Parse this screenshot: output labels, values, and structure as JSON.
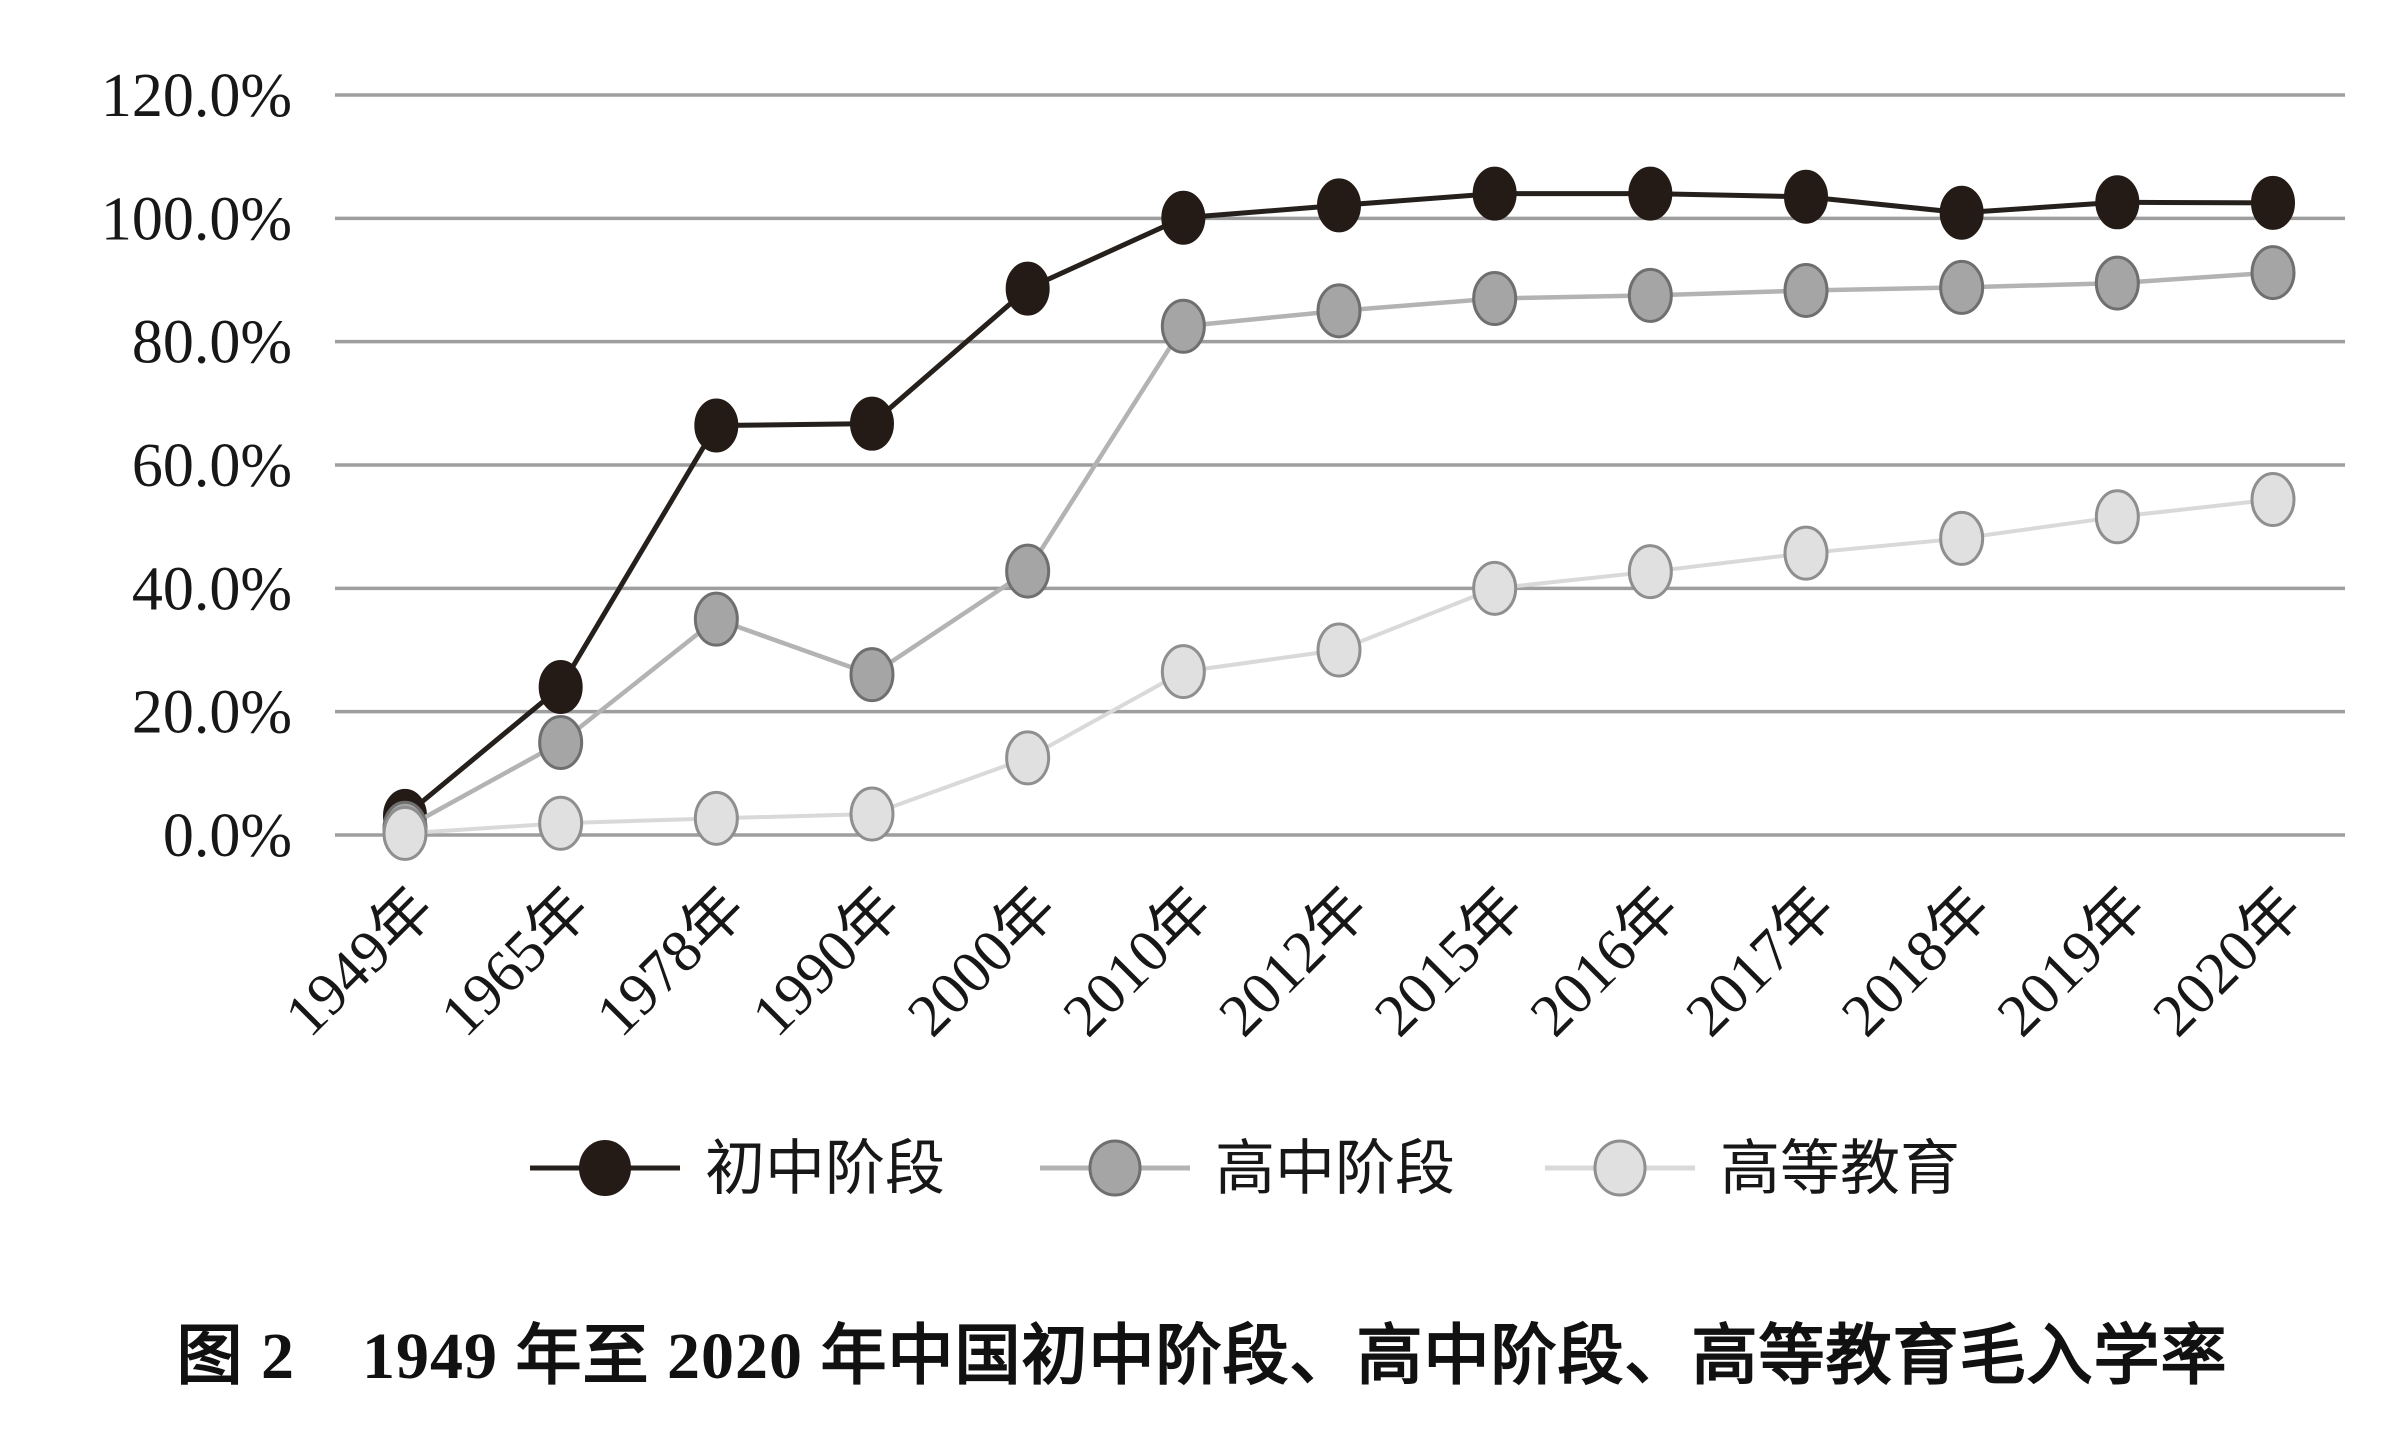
{
  "page": {
    "background": "#ffffff"
  },
  "caption": {
    "text": "图 2　1949 年至 2020 年中国初中阶段、高中阶段、高等教育毛入学率"
  },
  "chart_data": {
    "type": "line",
    "title": "",
    "xlabel": "",
    "ylabel": "",
    "categories": [
      "1949年",
      "1965年",
      "1978年",
      "1990年",
      "2000年",
      "2010年",
      "2012年",
      "2015年",
      "2016年",
      "2017年",
      "2018年",
      "2019年",
      "2020年"
    ],
    "series": [
      {
        "id": "junior-secondary",
        "name": "初中阶段",
        "values": [
          3.1,
          24.0,
          66.4,
          66.7,
          88.6,
          100.1,
          102.1,
          104.0,
          104.0,
          103.5,
          100.9,
          102.6,
          102.5
        ],
        "line_color": "#26201d",
        "line_width": 5,
        "marker_fill": "#241a16",
        "marker_stroke": "#241a16",
        "marker_stroke_width": 2
      },
      {
        "id": "senior-secondary",
        "name": "高中阶段",
        "values": [
          1.1,
          15.0,
          35.0,
          26.0,
          42.8,
          82.5,
          85.0,
          87.0,
          87.5,
          88.3,
          88.8,
          89.5,
          91.2
        ],
        "line_color": "#b3b3b3",
        "line_width": 4.5,
        "marker_fill": "#a5a5a5",
        "marker_stroke": "#6f6f6f",
        "marker_stroke_width": 3
      },
      {
        "id": "higher-education",
        "name": "高等教育",
        "values": [
          0.26,
          1.9,
          2.7,
          3.4,
          12.5,
          26.5,
          30.0,
          40.0,
          42.7,
          45.7,
          48.1,
          51.6,
          54.4
        ],
        "line_color": "#d9d9d9",
        "line_width": 4,
        "marker_fill": "#e0e0e0",
        "marker_stroke": "#8f8f8f",
        "marker_stroke_width": 3
      }
    ],
    "ylim": [
      0,
      120
    ],
    "ytick_step": 20,
    "ytick_labels": [
      "0.0%",
      "20.0%",
      "40.0%",
      "60.0%",
      "80.0%",
      "100.0%",
      "120.0%"
    ],
    "grid": true,
    "gridline_color": "#9e9e9e",
    "text_color": "#171717",
    "legend_position": "bottom"
  }
}
